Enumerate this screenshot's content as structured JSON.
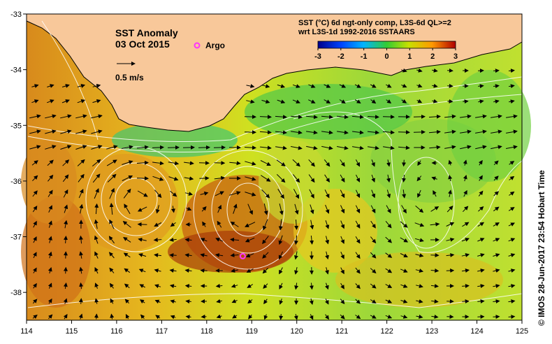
{
  "title": "SST Anomaly",
  "date": "03 Oct 2015",
  "argo_legend_label": "Argo",
  "velocity_scale_label": "0.5 m/s",
  "colorbar": {
    "title_line1": "SST (°C) 6d ngt-only comp, L3S-6d QL>=2",
    "title_line2": "wrt L3S-1d 1992-2016 SSTAARS",
    "ticks": [
      "-3",
      "-2",
      "-1",
      "0",
      "1",
      "2",
      "3"
    ],
    "colors": [
      "#00008b",
      "#0044ff",
      "#00b4ff",
      "#33cc33",
      "#c8e000",
      "#ff9900",
      "#ff3300",
      "#b00000"
    ]
  },
  "credit": "© IMOS 28-Jun-2017 23:54 Hobart Time",
  "axes": {
    "lon_ticks": [
      "114",
      "115",
      "116",
      "117",
      "118",
      "119",
      "120",
      "121",
      "122",
      "123",
      "124",
      "125"
    ],
    "lat_ticks": [
      "-33",
      "-34",
      "-35",
      "-36",
      "-37",
      "-38"
    ],
    "lon_range": [
      114,
      125
    ],
    "lat_range": [
      -38.5,
      -33
    ]
  },
  "argo_float": {
    "lon": 118.8,
    "lat": -37.35,
    "color": "#ff33ff"
  },
  "land_color": "#f8c89a"
}
